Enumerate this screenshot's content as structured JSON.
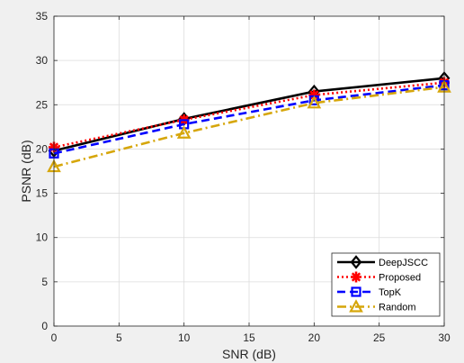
{
  "chart_data": {
    "type": "line",
    "title": "",
    "xlabel": "SNR (dB)",
    "ylabel": "PSNR (dB)",
    "xlim": [
      0,
      30
    ],
    "ylim": [
      0,
      35
    ],
    "xticks": [
      0,
      5,
      10,
      15,
      20,
      25,
      30
    ],
    "yticks": [
      0,
      5,
      10,
      15,
      20,
      25,
      30,
      35
    ],
    "xtick_labels": [
      "0",
      "5",
      "10",
      "15",
      "20",
      "25",
      "30"
    ],
    "ytick_labels": [
      "0",
      "5",
      "10",
      "15",
      "20",
      "25",
      "30",
      "35"
    ],
    "grid": true,
    "legend_position": "bottom-right",
    "x": [
      0,
      10,
      20,
      30
    ],
    "series": [
      {
        "name": "DeepJSCC",
        "values": [
          19.8,
          23.4,
          26.5,
          28.0
        ],
        "color": "#000000",
        "line": "solid",
        "marker": "diamond"
      },
      {
        "name": "Proposed",
        "values": [
          20.2,
          23.3,
          26.1,
          27.5
        ],
        "color": "#ff0000",
        "line": "dotted",
        "marker": "asterisk"
      },
      {
        "name": "TopK",
        "values": [
          19.5,
          22.8,
          25.5,
          27.2
        ],
        "color": "#0000ff",
        "line": "dashed",
        "marker": "square"
      },
      {
        "name": "Random",
        "values": [
          18.0,
          21.8,
          25.2,
          27.0
        ],
        "color": "#d6a60a",
        "line": "dashdot",
        "marker": "triangle"
      }
    ]
  }
}
